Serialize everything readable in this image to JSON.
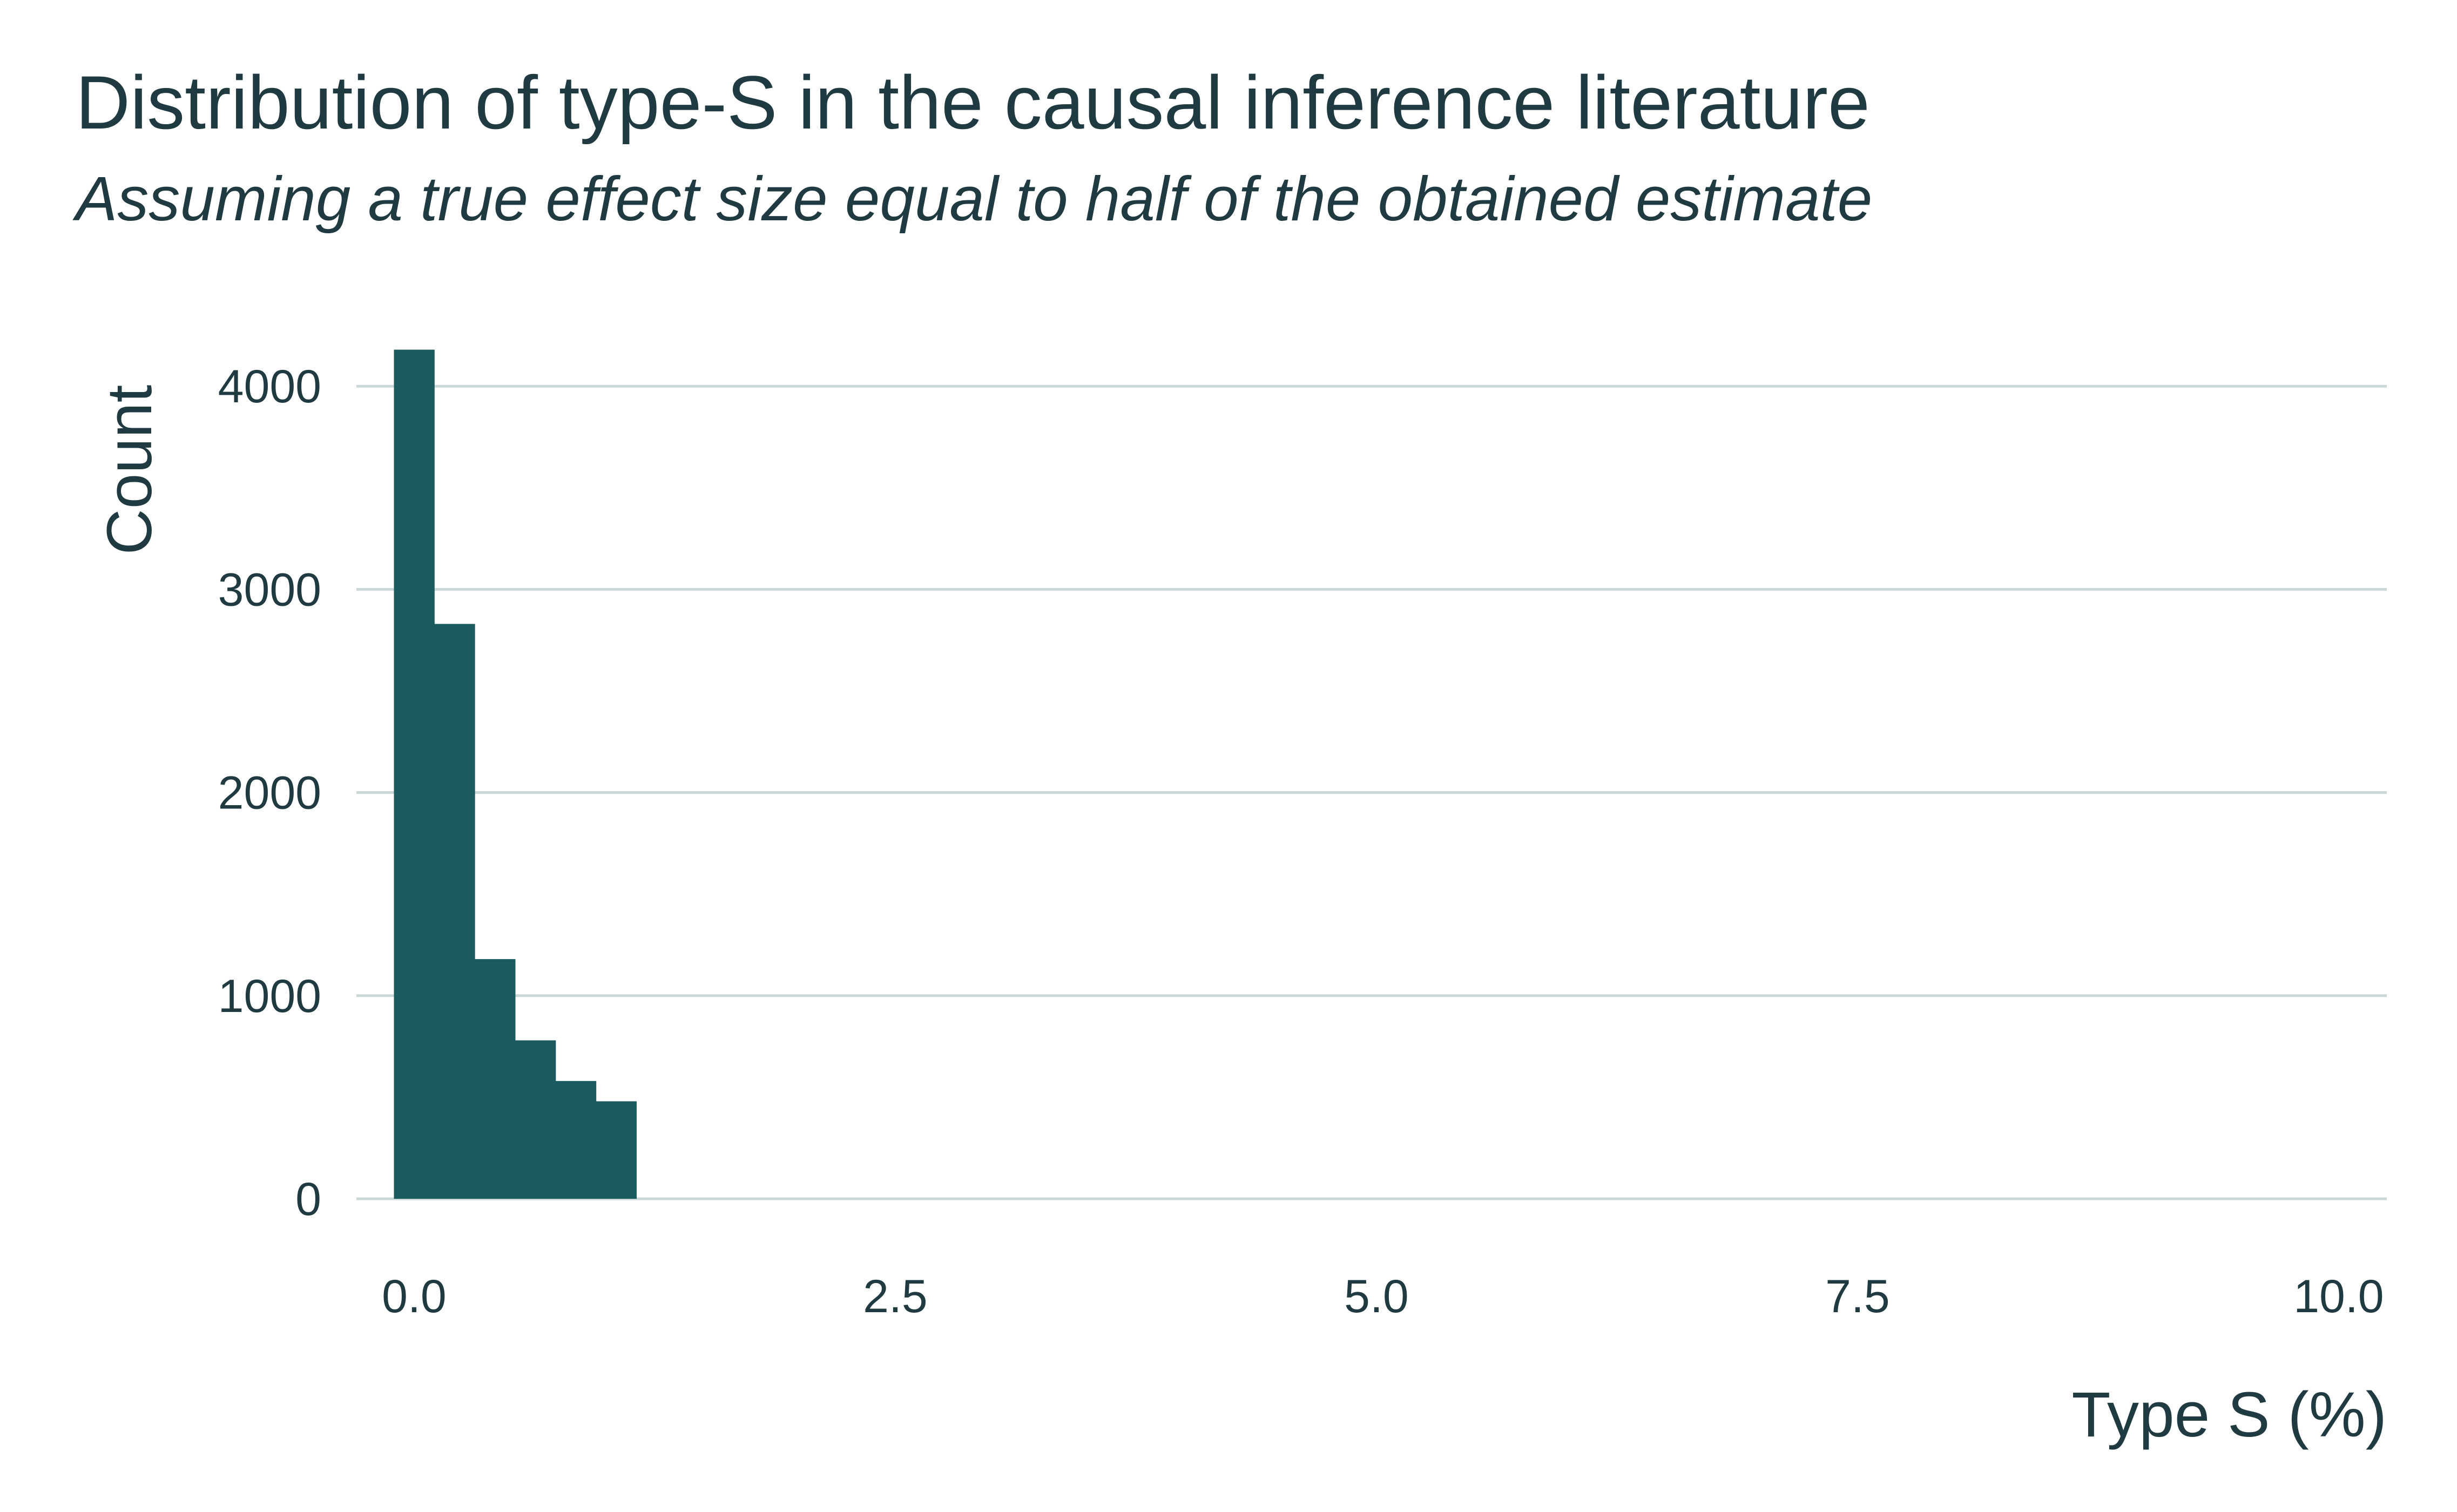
{
  "chart_data": {
    "type": "bar",
    "title": "Distribution of type-S in the causal inference literature",
    "subtitle": "Assuming a true effect size equal to half of the obtained estimate",
    "xlabel": "Type S (%)",
    "ylabel": "Count",
    "xlim": [
      -0.3,
      10.25
    ],
    "ylim": [
      0,
      4200
    ],
    "x_ticks": [
      0.0,
      2.5,
      5.0,
      7.5,
      10.0
    ],
    "x_tick_labels": [
      "0.0",
      "2.5",
      "5.0",
      "7.5",
      "10.0"
    ],
    "y_ticks": [
      0,
      1000,
      2000,
      3000,
      4000
    ],
    "y_tick_labels": [
      "0",
      "1000",
      "2000",
      "3000",
      "4000"
    ],
    "grid": "horizontal",
    "bin_width": 0.21,
    "bins": [
      {
        "x0": -0.105,
        "x1": 0.105,
        "count": 4180
      },
      {
        "x0": 0.105,
        "x1": 0.315,
        "count": 2830
      },
      {
        "x0": 0.315,
        "x1": 0.525,
        "count": 1180
      },
      {
        "x0": 0.525,
        "x1": 0.735,
        "count": 780
      },
      {
        "x0": 0.735,
        "x1": 0.945,
        "count": 580
      },
      {
        "x0": 0.945,
        "x1": 1.155,
        "count": 480
      }
    ],
    "colors": {
      "bar": "#1b5a5e",
      "grid": "#c9d7d6",
      "text": "#1f3a40"
    }
  }
}
